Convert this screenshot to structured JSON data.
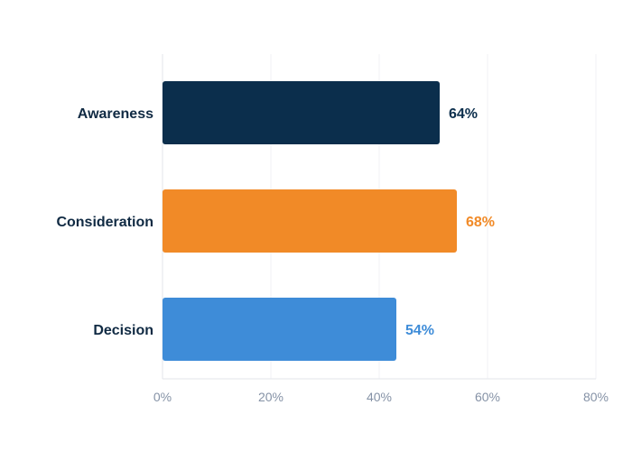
{
  "chart_data": {
    "type": "bar",
    "orientation": "horizontal",
    "categories": [
      "Awareness",
      "Consideration",
      "Decision"
    ],
    "values": [
      64,
      68,
      54
    ],
    "value_labels": [
      "64%",
      "68%",
      "54%"
    ],
    "colors": [
      "#0b2e4c",
      "#f18a27",
      "#3e8cd8"
    ],
    "xlim": [
      0,
      80
    ],
    "x_ticks": [
      0,
      20,
      40,
      60,
      80
    ],
    "x_tick_labels": [
      "0%",
      "20%",
      "40%",
      "60%",
      "80%"
    ],
    "grid": true,
    "title": "",
    "xlabel": "",
    "ylabel": ""
  }
}
